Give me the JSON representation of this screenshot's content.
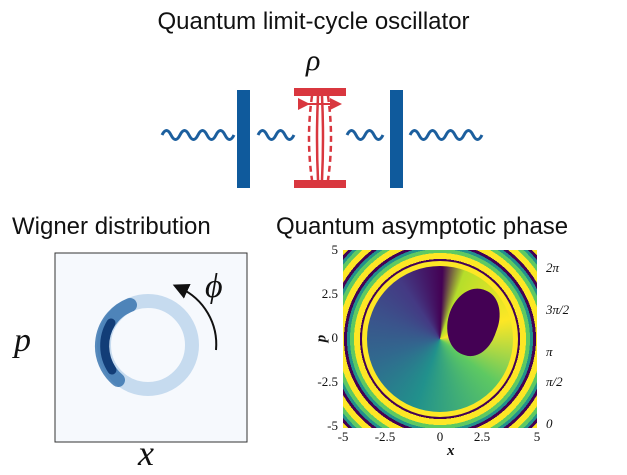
{
  "title": "Quantum limit-cycle oscillator",
  "system": {
    "label": "ρ"
  },
  "wigner": {
    "title": "Wigner distribution",
    "x_label": "x",
    "y_label": "p",
    "angle_label": "ϕ"
  },
  "phase": {
    "title": "Quantum asymptotic phase",
    "x_label": "x",
    "y_label": "p",
    "x_ticks": [
      "-5",
      "-2.5",
      "0",
      "2.5",
      "5"
    ],
    "y_ticks": [
      "5",
      "2.5",
      "0",
      "-2.5",
      "-5"
    ],
    "colorbar_ticks": [
      "2π",
      "3π/2",
      "π",
      "π/2",
      "0"
    ]
  }
}
